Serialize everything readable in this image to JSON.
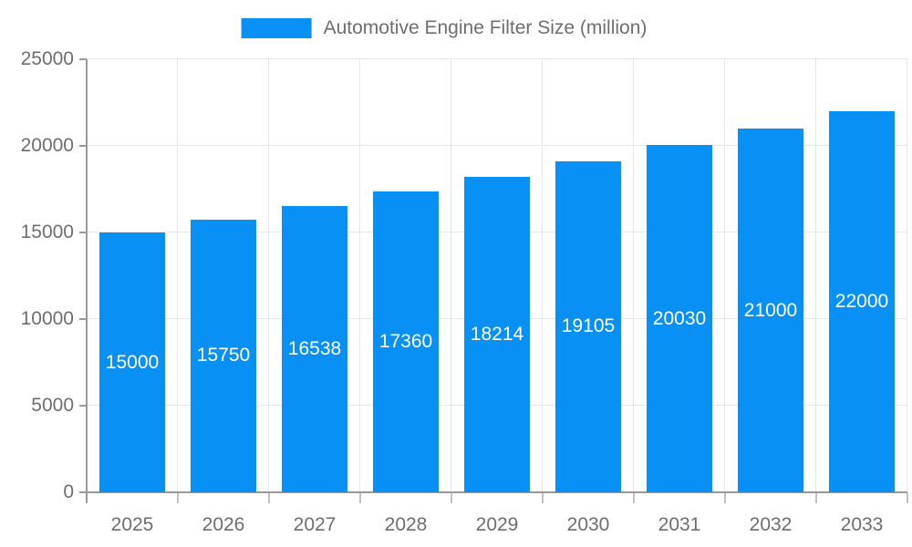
{
  "legend": {
    "label": "Automotive Engine Filter Size (million)",
    "swatch_color": "#0990f5"
  },
  "chart_data": {
    "type": "bar",
    "title": "",
    "categories": [
      "2025",
      "2026",
      "2027",
      "2028",
      "2029",
      "2030",
      "2031",
      "2032",
      "2033"
    ],
    "series": [
      {
        "name": "Automotive Engine Filter Size (million)",
        "values": [
          15000,
          15750,
          16538,
          17360,
          18214,
          19105,
          20030,
          21000,
          22000
        ],
        "color": "#0990f5"
      }
    ],
    "xlabel": "",
    "ylabel": "",
    "ylim": [
      0,
      25000
    ],
    "yticks": [
      0,
      5000,
      10000,
      15000,
      20000,
      25000
    ],
    "grid": true,
    "legend_position": "top-center",
    "value_labels": {
      "position": "inside-center",
      "color": "#ffffff"
    }
  },
  "colors": {
    "bar": "#0990f5",
    "grid": "#e6e6e6",
    "axis": "#999999",
    "x_boundary_tick": "#c2c2c2",
    "tick_text": "#6e6e6e",
    "value_label_text": "#ffffff",
    "background": "#ffffff"
  }
}
